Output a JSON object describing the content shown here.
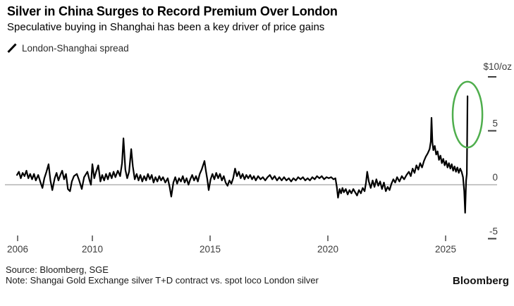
{
  "header": {
    "title": "Silver in China Surges to Record Premium Over London",
    "subtitle": "Speculative buying in Shanghai has been a key driver of price gains"
  },
  "legend": {
    "label": "London-Shanghai spread"
  },
  "axis": {
    "unit_label": "$10/oz"
  },
  "footer": {
    "source": "Source: Bloomberg, SGE",
    "note": "Note: Shangai Gold Exchange silver T+D contract vs. spot loco London silver",
    "logo": "Bloomberg"
  },
  "colors": {
    "line": "#000000",
    "zero_line": "#8f8f8f",
    "tick_text": "#3c3c3c",
    "tick_mark": "#4a4a4a",
    "annotation": "#4fae4d"
  },
  "chart_data": {
    "type": "line",
    "title": "London-Shanghai spread",
    "xlabel": "",
    "ylabel": "$/oz",
    "ylim": [
      -6,
      11
    ],
    "grid": "zero-line-only",
    "legend_position": "top-left",
    "x_ticks": [
      {
        "label": "2006",
        "year": 2006
      },
      {
        "label": "2010",
        "year": 2010
      },
      {
        "label": "2015",
        "year": 2015
      },
      {
        "label": "2020",
        "year": 2020
      },
      {
        "label": "2025",
        "year": 2025
      }
    ],
    "y_ticks": [
      {
        "label": "",
        "value": 10
      },
      {
        "label": "5",
        "value": 5
      },
      {
        "label": "0",
        "value": 0
      },
      {
        "label": "-5",
        "value": -5
      }
    ],
    "annotation": {
      "type": "ellipse",
      "meaning": "highlights record year-end spike",
      "x_year": 2025.93,
      "y_value": 6.5,
      "rx_years": 0.63,
      "ry_values": 3.05
    },
    "series": [
      {
        "name": "London-Shanghai spread",
        "points": [
          [
            2006.8,
            0.9
          ],
          [
            2006.88,
            1.2
          ],
          [
            2006.96,
            0.6
          ],
          [
            2007.04,
            1.1
          ],
          [
            2007.12,
            0.8
          ],
          [
            2007.2,
            1.3
          ],
          [
            2007.28,
            0.6
          ],
          [
            2007.36,
            1.0
          ],
          [
            2007.44,
            0.5
          ],
          [
            2007.52,
            1.0
          ],
          [
            2007.6,
            0.4
          ],
          [
            2007.7,
            0.9
          ],
          [
            2007.8,
            0.2
          ],
          [
            2007.88,
            -0.3
          ],
          [
            2007.96,
            0.6
          ],
          [
            2008.05,
            1.2
          ],
          [
            2008.14,
            1.9
          ],
          [
            2008.22,
            0.4
          ],
          [
            2008.3,
            -0.5
          ],
          [
            2008.4,
            0.6
          ],
          [
            2008.48,
            1.1
          ],
          [
            2008.56,
            0.4
          ],
          [
            2008.64,
            0.9
          ],
          [
            2008.72,
            1.3
          ],
          [
            2008.8,
            0.5
          ],
          [
            2008.88,
            1.0
          ],
          [
            2008.96,
            -0.4
          ],
          [
            2009.05,
            -0.6
          ],
          [
            2009.13,
            0.3
          ],
          [
            2009.22,
            0.8
          ],
          [
            2009.34,
            1.0
          ],
          [
            2009.44,
            0.4
          ],
          [
            2009.55,
            -0.4
          ],
          [
            2009.65,
            0.7
          ],
          [
            2009.79,
            1.2
          ],
          [
            2009.88,
            0.4
          ],
          [
            2009.94,
            0.0
          ],
          [
            2010.0,
            1.9
          ],
          [
            2010.08,
            0.6
          ],
          [
            2010.16,
            1.2
          ],
          [
            2010.25,
            1.8
          ],
          [
            2010.34,
            0.3
          ],
          [
            2010.42,
            0.9
          ],
          [
            2010.5,
            0.4
          ],
          [
            2010.58,
            1.0
          ],
          [
            2010.66,
            0.5
          ],
          [
            2010.74,
            1.1
          ],
          [
            2010.82,
            0.6
          ],
          [
            2010.9,
            1.2
          ],
          [
            2010.98,
            0.7
          ],
          [
            2011.08,
            1.3
          ],
          [
            2011.18,
            0.8
          ],
          [
            2011.26,
            2.0
          ],
          [
            2011.32,
            4.3
          ],
          [
            2011.4,
            1.4
          ],
          [
            2011.48,
            0.6
          ],
          [
            2011.56,
            1.2
          ],
          [
            2011.65,
            3.3
          ],
          [
            2011.72,
            1.7
          ],
          [
            2011.8,
            0.5
          ],
          [
            2011.88,
            1.0
          ],
          [
            2011.96,
            0.4
          ],
          [
            2012.04,
            0.9
          ],
          [
            2012.12,
            0.3
          ],
          [
            2012.2,
            0.8
          ],
          [
            2012.28,
            0.4
          ],
          [
            2012.36,
            1.0
          ],
          [
            2012.44,
            0.5
          ],
          [
            2012.52,
            0.9
          ],
          [
            2012.6,
            0.2
          ],
          [
            2012.68,
            0.7
          ],
          [
            2012.76,
            0.3
          ],
          [
            2012.84,
            0.8
          ],
          [
            2012.92,
            0.4
          ],
          [
            2013.0,
            0.7
          ],
          [
            2013.1,
            0.2
          ],
          [
            2013.2,
            0.6
          ],
          [
            2013.28,
            -0.2
          ],
          [
            2013.35,
            -1.1
          ],
          [
            2013.44,
            0.2
          ],
          [
            2013.52,
            0.7
          ],
          [
            2013.6,
            0.1
          ],
          [
            2013.68,
            0.6
          ],
          [
            2013.76,
            0.3
          ],
          [
            2013.84,
            0.8
          ],
          [
            2013.92,
            0.2
          ],
          [
            2014.0,
            0.6
          ],
          [
            2014.08,
            0.0
          ],
          [
            2014.16,
            0.5
          ],
          [
            2014.24,
            0.9
          ],
          [
            2014.32,
            0.4
          ],
          [
            2014.4,
            0.8
          ],
          [
            2014.48,
            0.3
          ],
          [
            2014.56,
            1.0
          ],
          [
            2014.64,
            1.4
          ],
          [
            2014.7,
            1.8
          ],
          [
            2014.76,
            2.2
          ],
          [
            2014.82,
            1.3
          ],
          [
            2014.88,
            0.5
          ],
          [
            2014.94,
            -0.5
          ],
          [
            2015.02,
            0.5
          ],
          [
            2015.1,
            1.0
          ],
          [
            2015.18,
            0.5
          ],
          [
            2015.26,
            1.1
          ],
          [
            2015.34,
            0.6
          ],
          [
            2015.42,
            1.0
          ],
          [
            2015.5,
            0.4
          ],
          [
            2015.58,
            0.8
          ],
          [
            2015.66,
            0.2
          ],
          [
            2015.74,
            -0.1
          ],
          [
            2015.82,
            0.4
          ],
          [
            2015.9,
            0.1
          ],
          [
            2015.98,
            0.6
          ],
          [
            2016.06,
            1.5
          ],
          [
            2016.14,
            0.8
          ],
          [
            2016.22,
            1.2
          ],
          [
            2016.3,
            0.6
          ],
          [
            2016.38,
            1.0
          ],
          [
            2016.46,
            0.5
          ],
          [
            2016.54,
            0.9
          ],
          [
            2016.62,
            0.6
          ],
          [
            2016.7,
            0.9
          ],
          [
            2016.78,
            0.5
          ],
          [
            2016.86,
            0.8
          ],
          [
            2016.94,
            0.4
          ],
          [
            2017.04,
            0.8
          ],
          [
            2017.14,
            0.5
          ],
          [
            2017.24,
            0.7
          ],
          [
            2017.34,
            0.4
          ],
          [
            2017.44,
            0.7
          ],
          [
            2017.54,
            0.9
          ],
          [
            2017.64,
            0.5
          ],
          [
            2017.74,
            0.8
          ],
          [
            2017.84,
            0.4
          ],
          [
            2017.94,
            0.7
          ],
          [
            2018.04,
            0.4
          ],
          [
            2018.14,
            0.7
          ],
          [
            2018.24,
            0.4
          ],
          [
            2018.34,
            0.6
          ],
          [
            2018.44,
            0.3
          ],
          [
            2018.54,
            0.6
          ],
          [
            2018.64,
            0.4
          ],
          [
            2018.74,
            0.7
          ],
          [
            2018.84,
            0.5
          ],
          [
            2018.94,
            0.7
          ],
          [
            2019.04,
            0.4
          ],
          [
            2019.14,
            0.6
          ],
          [
            2019.24,
            0.4
          ],
          [
            2019.34,
            0.7
          ],
          [
            2019.44,
            0.5
          ],
          [
            2019.54,
            0.8
          ],
          [
            2019.64,
            0.6
          ],
          [
            2019.74,
            0.8
          ],
          [
            2019.84,
            0.5
          ],
          [
            2019.94,
            0.7
          ],
          [
            2020.04,
            0.6
          ],
          [
            2020.14,
            0.7
          ],
          [
            2020.24,
            0.5
          ],
          [
            2020.32,
            0.6
          ],
          [
            2020.38,
            -0.2
          ],
          [
            2020.43,
            -1.2
          ],
          [
            2020.5,
            -0.4
          ],
          [
            2020.56,
            -0.8
          ],
          [
            2020.62,
            -0.3
          ],
          [
            2020.68,
            -0.7
          ],
          [
            2020.76,
            -0.4
          ],
          [
            2020.84,
            -0.9
          ],
          [
            2020.92,
            -0.5
          ],
          [
            2021.0,
            -0.8
          ],
          [
            2021.08,
            -0.4
          ],
          [
            2021.16,
            -0.7
          ],
          [
            2021.24,
            -1.0
          ],
          [
            2021.32,
            -0.5
          ],
          [
            2021.4,
            -0.8
          ],
          [
            2021.48,
            -0.3
          ],
          [
            2021.56,
            -0.6
          ],
          [
            2021.62,
            0.2
          ],
          [
            2021.67,
            1.2
          ],
          [
            2021.74,
            0.3
          ],
          [
            2021.82,
            -0.3
          ],
          [
            2021.9,
            0.4
          ],
          [
            2021.98,
            -0.2
          ],
          [
            2022.06,
            0.5
          ],
          [
            2022.14,
            -0.1
          ],
          [
            2022.22,
            0.3
          ],
          [
            2022.3,
            -0.4
          ],
          [
            2022.38,
            0.2
          ],
          [
            2022.46,
            -0.6
          ],
          [
            2022.54,
            -0.2
          ],
          [
            2022.62,
            -0.5
          ],
          [
            2022.7,
            0.1
          ],
          [
            2022.78,
            0.5
          ],
          [
            2022.86,
            0.2
          ],
          [
            2022.94,
            0.7
          ],
          [
            2023.04,
            0.3
          ],
          [
            2023.14,
            0.8
          ],
          [
            2023.24,
            0.5
          ],
          [
            2023.34,
            0.9
          ],
          [
            2023.44,
            1.2
          ],
          [
            2023.52,
            0.8
          ],
          [
            2023.6,
            1.5
          ],
          [
            2023.68,
            1.1
          ],
          [
            2023.76,
            1.8
          ],
          [
            2023.84,
            1.4
          ],
          [
            2023.92,
            2.0
          ],
          [
            2024.0,
            1.6
          ],
          [
            2024.08,
            2.2
          ],
          [
            2024.16,
            2.6
          ],
          [
            2024.24,
            2.9
          ],
          [
            2024.32,
            3.3
          ],
          [
            2024.37,
            4.0
          ],
          [
            2024.4,
            6.2
          ],
          [
            2024.44,
            3.9
          ],
          [
            2024.48,
            3.2
          ],
          [
            2024.54,
            3.6
          ],
          [
            2024.6,
            2.8
          ],
          [
            2024.66,
            3.1
          ],
          [
            2024.72,
            2.3
          ],
          [
            2024.78,
            2.7
          ],
          [
            2024.84,
            2.0
          ],
          [
            2024.9,
            2.4
          ],
          [
            2024.96,
            1.8
          ],
          [
            2025.02,
            2.2
          ],
          [
            2025.08,
            1.6
          ],
          [
            2025.14,
            2.0
          ],
          [
            2025.2,
            1.5
          ],
          [
            2025.26,
            1.9
          ],
          [
            2025.32,
            1.3
          ],
          [
            2025.38,
            1.7
          ],
          [
            2025.44,
            1.2
          ],
          [
            2025.5,
            1.6
          ],
          [
            2025.56,
            1.1
          ],
          [
            2025.62,
            1.5
          ],
          [
            2025.68,
            1.2
          ],
          [
            2025.74,
            0.7
          ],
          [
            2025.79,
            -0.6
          ],
          [
            2025.83,
            -2.6
          ],
          [
            2025.87,
            0.4
          ],
          [
            2025.9,
            1.0
          ],
          [
            2025.93,
            8.2
          ]
        ]
      }
    ]
  }
}
